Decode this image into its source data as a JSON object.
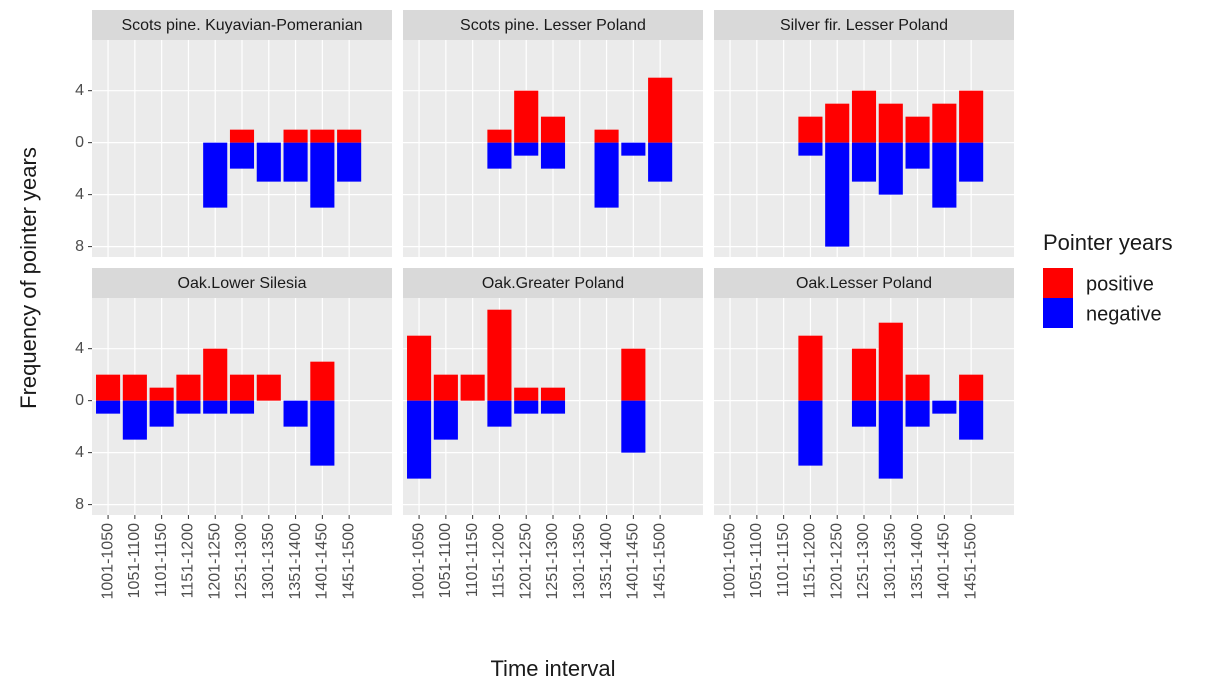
{
  "xlabel": "Time interval",
  "ylabel": "Frequency of pointer years",
  "legend_title": "Pointer years",
  "chart_data": [
    {
      "type": "bar",
      "title": "Scots pine. Kuyavian-Pomeranian",
      "categories": [
        "1001-1050",
        "1051-1100",
        "1101-1150",
        "1151-1200",
        "1201-1250",
        "1251-1300",
        "1301-1350",
        "1351-1400",
        "1401-1450",
        "1451-1500"
      ],
      "series": [
        {
          "name": "positive",
          "color": "#ff0000",
          "values": [
            null,
            null,
            null,
            null,
            null,
            1,
            null,
            1,
            1,
            1
          ]
        },
        {
          "name": "negative",
          "color": "#0000ff",
          "values": [
            null,
            null,
            null,
            null,
            -5,
            -2,
            -3,
            -3,
            -5,
            -3
          ]
        }
      ],
      "ylim": [
        -8.8,
        7.9
      ],
      "yticks": [
        {
          "value": -8,
          "label": "8"
        },
        {
          "value": -4,
          "label": "4"
        },
        0,
        4
      ],
      "grid": true
    },
    {
      "type": "bar",
      "title": "Scots pine. Lesser Poland",
      "categories": [
        "1001-1050",
        "1051-1100",
        "1101-1150",
        "1151-1200",
        "1201-1250",
        "1251-1300",
        "1301-1350",
        "1351-1400",
        "1401-1450",
        "1451-1500"
      ],
      "series": [
        {
          "name": "positive",
          "color": "#ff0000",
          "values": [
            null,
            null,
            null,
            1,
            4,
            2,
            null,
            1,
            null,
            5
          ]
        },
        {
          "name": "negative",
          "color": "#0000ff",
          "values": [
            null,
            null,
            null,
            -2,
            -1,
            -2,
            null,
            -5,
            -1,
            -3
          ]
        }
      ],
      "ylim": [
        -8.8,
        7.9
      ],
      "yticks": [
        {
          "value": -8,
          "label": "8"
        },
        {
          "value": -4,
          "label": "4"
        },
        0,
        4
      ],
      "grid": true
    },
    {
      "type": "bar",
      "title": "Silver fir. Lesser Poland",
      "categories": [
        "1001-1050",
        "1051-1100",
        "1101-1150",
        "1151-1200",
        "1201-1250",
        "1251-1300",
        "1301-1350",
        "1351-1400",
        "1401-1450",
        "1451-1500"
      ],
      "series": [
        {
          "name": "positive",
          "color": "#ff0000",
          "values": [
            null,
            null,
            null,
            2,
            3,
            4,
            3,
            2,
            3,
            4
          ]
        },
        {
          "name": "negative",
          "color": "#0000ff",
          "values": [
            null,
            null,
            null,
            -1,
            -8,
            -3,
            -4,
            -2,
            -5,
            -3
          ]
        }
      ],
      "ylim": [
        -8.8,
        7.9
      ],
      "yticks": [
        {
          "value": -8,
          "label": "8"
        },
        {
          "value": -4,
          "label": "4"
        },
        0,
        4
      ],
      "grid": true
    },
    {
      "type": "bar",
      "title": "Oak.Lower Silesia",
      "categories": [
        "1001-1050",
        "1051-1100",
        "1101-1150",
        "1151-1200",
        "1201-1250",
        "1251-1300",
        "1301-1350",
        "1351-1400",
        "1401-1450",
        "1451-1500"
      ],
      "series": [
        {
          "name": "positive",
          "color": "#ff0000",
          "values": [
            2,
            2,
            1,
            2,
            4,
            2,
            2,
            null,
            3,
            null
          ]
        },
        {
          "name": "negative",
          "color": "#0000ff",
          "values": [
            -1,
            -3,
            -2,
            -1,
            -1,
            -1,
            null,
            -2,
            -5,
            null
          ]
        }
      ],
      "ylim": [
        -8.8,
        7.9
      ],
      "yticks": [
        {
          "value": -8,
          "label": "8"
        },
        {
          "value": -4,
          "label": "4"
        },
        0,
        4
      ],
      "grid": true
    },
    {
      "type": "bar",
      "title": "Oak.Greater Poland",
      "categories": [
        "1001-1050",
        "1051-1100",
        "1101-1150",
        "1151-1200",
        "1201-1250",
        "1251-1300",
        "1301-1350",
        "1351-1400",
        "1401-1450",
        "1451-1500"
      ],
      "series": [
        {
          "name": "positive",
          "color": "#ff0000",
          "values": [
            5,
            2,
            2,
            7,
            1,
            1,
            null,
            null,
            4,
            null
          ]
        },
        {
          "name": "negative",
          "color": "#0000ff",
          "values": [
            -6,
            -3,
            null,
            -2,
            -1,
            -1,
            null,
            null,
            -4,
            null
          ]
        }
      ],
      "ylim": [
        -8.8,
        7.9
      ],
      "yticks": [
        {
          "value": -8,
          "label": "8"
        },
        {
          "value": -4,
          "label": "4"
        },
        0,
        4
      ],
      "grid": true
    },
    {
      "type": "bar",
      "title": "Oak.Lesser Poland",
      "categories": [
        "1001-1050",
        "1051-1100",
        "1101-1150",
        "1151-1200",
        "1201-1250",
        "1251-1300",
        "1301-1350",
        "1351-1400",
        "1401-1450",
        "1451-1500"
      ],
      "series": [
        {
          "name": "positive",
          "color": "#ff0000",
          "values": [
            null,
            null,
            null,
            5,
            null,
            4,
            6,
            2,
            null,
            2
          ]
        },
        {
          "name": "negative",
          "color": "#0000ff",
          "values": [
            null,
            null,
            null,
            -5,
            null,
            -2,
            -6,
            -2,
            -1,
            -3
          ]
        }
      ],
      "ylim": [
        -8.8,
        7.9
      ],
      "yticks": [
        {
          "value": -8,
          "label": "8"
        },
        {
          "value": -4,
          "label": "4"
        },
        0,
        4
      ],
      "grid": true
    }
  ]
}
